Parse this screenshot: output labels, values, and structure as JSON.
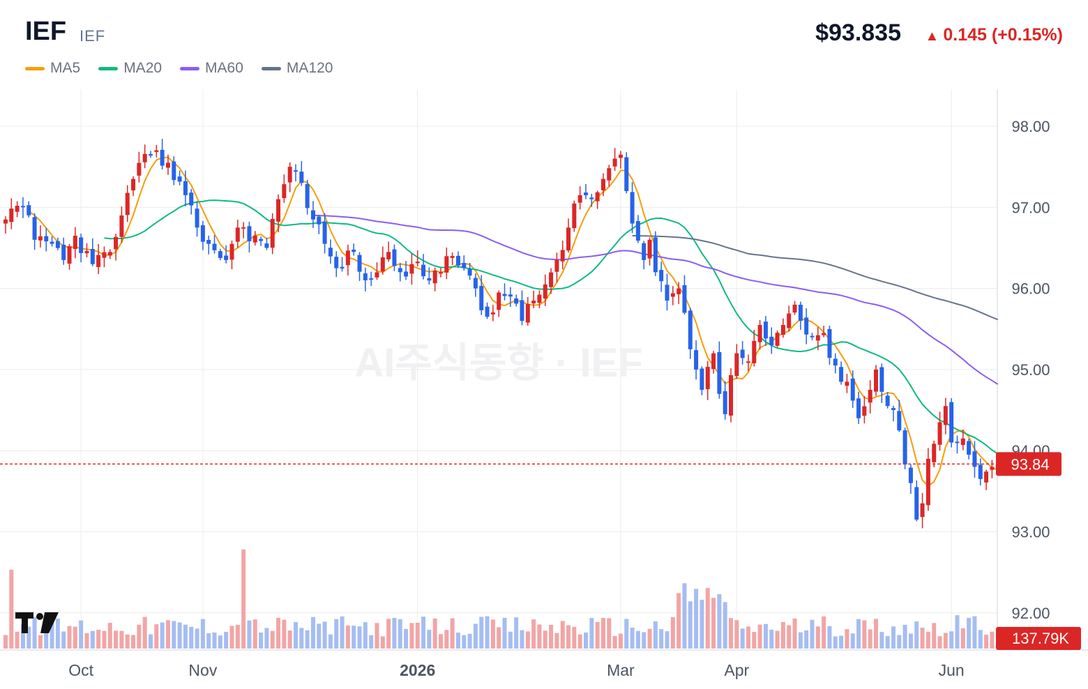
{
  "header": {
    "ticker": "IEF",
    "exchange": "IEF",
    "price": "$93.835",
    "change_arrow": "▲",
    "change": "0.145 (+0.15%)"
  },
  "legend": [
    {
      "label": "MA5",
      "color": "#f59e0b"
    },
    {
      "label": "MA20",
      "color": "#10b981"
    },
    {
      "label": "MA60",
      "color": "#8b5cf6"
    },
    {
      "label": "MA120",
      "color": "#64748b"
    }
  ],
  "watermark": "AI주식동향 · IEF",
  "colors": {
    "up": "#dc2626",
    "down": "#2563eb",
    "up_volume": "#f2a5a5",
    "down_volume": "#a5bdf2",
    "grid": "#ececec"
  },
  "chart_data": {
    "type": "candlestick",
    "title": "IEF",
    "yticks": [
      98.0,
      97.0,
      96.0,
      95.0,
      94.0,
      93.0,
      92.0
    ],
    "ylim": [
      91.5,
      98.5
    ],
    "x_labels": [
      {
        "label": "Oct",
        "index": 13,
        "bold": false
      },
      {
        "label": "Nov",
        "index": 34,
        "bold": false
      },
      {
        "label": "2026",
        "index": 71,
        "bold": true
      },
      {
        "label": "Mar",
        "index": 106,
        "bold": false
      },
      {
        "label": "Apr",
        "index": 126,
        "bold": false
      },
      {
        "label": "Jun",
        "index": 163,
        "bold": false
      }
    ],
    "last_price_label": "93.84",
    "last_price": 93.835,
    "last_volume_label": "137.79K",
    "volume_max": 138000,
    "anchors": [
      [
        0,
        96.85
      ],
      [
        3,
        97.0
      ],
      [
        5,
        96.6
      ],
      [
        8,
        96.55
      ],
      [
        10,
        96.35
      ],
      [
        12,
        96.65
      ],
      [
        15,
        96.3
      ],
      [
        18,
        96.45
      ],
      [
        20,
        96.9
      ],
      [
        22,
        97.35
      ],
      [
        25,
        97.65
      ],
      [
        28,
        97.55
      ],
      [
        31,
        97.15
      ],
      [
        33,
        96.75
      ],
      [
        35,
        96.55
      ],
      [
        38,
        96.35
      ],
      [
        40,
        96.75
      ],
      [
        43,
        96.65
      ],
      [
        45,
        96.5
      ],
      [
        47,
        97.1
      ],
      [
        49,
        97.5
      ],
      [
        51,
        97.3
      ],
      [
        53,
        96.85
      ],
      [
        55,
        96.55
      ],
      [
        57,
        96.25
      ],
      [
        60,
        96.45
      ],
      [
        62,
        96.1
      ],
      [
        64,
        96.2
      ],
      [
        66,
        96.45
      ],
      [
        68,
        96.2
      ],
      [
        70,
        96.3
      ],
      [
        72,
        96.15
      ],
      [
        75,
        96.2
      ],
      [
        77,
        96.4
      ],
      [
        79,
        96.25
      ],
      [
        81,
        96.0
      ],
      [
        83,
        95.65
      ],
      [
        85,
        95.95
      ],
      [
        87,
        95.9
      ],
      [
        89,
        95.6
      ],
      [
        91,
        95.85
      ],
      [
        93,
        96.05
      ],
      [
        95,
        96.35
      ],
      [
        97,
        96.75
      ],
      [
        99,
        97.15
      ],
      [
        101,
        97.1
      ],
      [
        103,
        97.35
      ],
      [
        105,
        97.6
      ],
      [
        106,
        97.65
      ],
      [
        107,
        97.2
      ],
      [
        108,
        96.8
      ],
      [
        110,
        96.35
      ],
      [
        111,
        96.6
      ],
      [
        112,
        96.2
      ],
      [
        114,
        95.85
      ],
      [
        116,
        96.0
      ],
      [
        117,
        95.7
      ],
      [
        118,
        95.25
      ],
      [
        119,
        95.0
      ],
      [
        120,
        94.75
      ],
      [
        122,
        95.2
      ],
      [
        123,
        94.7
      ],
      [
        124,
        94.45
      ],
      [
        126,
        95.2
      ],
      [
        128,
        95.1
      ],
      [
        130,
        95.55
      ],
      [
        132,
        95.3
      ],
      [
        134,
        95.55
      ],
      [
        136,
        95.8
      ],
      [
        137,
        95.6
      ],
      [
        139,
        95.4
      ],
      [
        141,
        95.45
      ],
      [
        143,
        95.05
      ],
      [
        145,
        94.85
      ],
      [
        147,
        94.4
      ],
      [
        149,
        94.75
      ],
      [
        150,
        95.0
      ],
      [
        152,
        94.55
      ],
      [
        154,
        94.25
      ],
      [
        156,
        93.6
      ],
      [
        157,
        93.15
      ],
      [
        158,
        93.35
      ],
      [
        159,
        93.9
      ],
      [
        161,
        94.35
      ],
      [
        162,
        94.55
      ],
      [
        163,
        94.1
      ],
      [
        165,
        94.15
      ],
      [
        166,
        93.95
      ],
      [
        168,
        93.65
      ],
      [
        170,
        93.8
      ],
      [
        171,
        93.835
      ]
    ],
    "ma_series": [
      {
        "name": "MA5",
        "color": "#f59e0b",
        "period": 5,
        "start": 4
      },
      {
        "name": "MA20",
        "color": "#10b981",
        "period": 20,
        "start": 17
      },
      {
        "name": "MA60",
        "color": "#8b5cf6",
        "period": 60,
        "start": 53
      },
      {
        "name": "MA120",
        "color": "#64748b",
        "period": 120,
        "start": 108
      }
    ],
    "ma_extra_start_levels": {
      "MA60": 96.9,
      "MA120": 96.65
    }
  }
}
